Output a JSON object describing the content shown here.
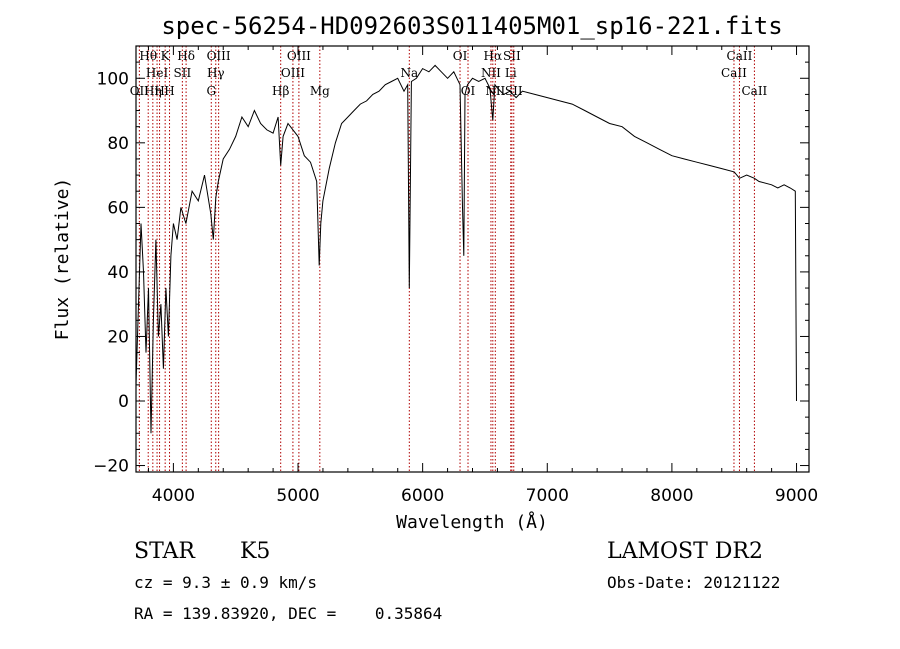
{
  "title": "spec-56254-HD092603S011405M01_sp16-221.fits",
  "chart_data": {
    "type": "line",
    "xlabel": "Wavelength (Å)",
    "ylabel": "Flux (relative)",
    "xlim": [
      3700,
      9100
    ],
    "ylim": [
      -22,
      110
    ],
    "xticks": [
      4000,
      5000,
      6000,
      7000,
      8000,
      9000
    ],
    "yticks": [
      -20,
      0,
      20,
      40,
      60,
      80,
      100
    ],
    "series": [
      {
        "x": [
          3700,
          3720,
          3740,
          3760,
          3780,
          3800,
          3820,
          3840,
          3860,
          3880,
          3900,
          3920,
          3940,
          3960,
          3980,
          4000,
          4030,
          4060,
          4100,
          4150,
          4200,
          4250,
          4300,
          4320,
          4340,
          4360,
          4400,
          4450,
          4500,
          4550,
          4600,
          4650,
          4700,
          4750,
          4800,
          4840,
          4861,
          4880,
          4920,
          4960,
          5000,
          5050,
          5100,
          5150,
          5170,
          5183,
          5200,
          5250,
          5300,
          5350,
          5400,
          5450,
          5500,
          5550,
          5600,
          5650,
          5700,
          5750,
          5800,
          5850,
          5880,
          5893,
          5910,
          5950,
          6000,
          6050,
          6100,
          6150,
          6200,
          6250,
          6300,
          6320,
          6330,
          6340,
          6360,
          6400,
          6450,
          6500,
          6540,
          6563,
          6580,
          6600,
          6650,
          6700,
          6750,
          6800,
          6900,
          7000,
          7100,
          7200,
          7300,
          7400,
          7500,
          7600,
          7700,
          7800,
          7900,
          8000,
          8100,
          8200,
          8300,
          8400,
          8500,
          8542,
          8600,
          8662,
          8700,
          8800,
          8850,
          8900,
          8950,
          8990,
          9000
        ],
        "y": [
          5,
          30,
          55,
          40,
          15,
          35,
          -10,
          25,
          50,
          20,
          30,
          10,
          35,
          20,
          45,
          55,
          50,
          60,
          55,
          65,
          62,
          70,
          58,
          50,
          63,
          68,
          75,
          78,
          82,
          88,
          85,
          90,
          86,
          84,
          83,
          88,
          73,
          82,
          86,
          84,
          82,
          76,
          74,
          68,
          42,
          55,
          62,
          72,
          80,
          86,
          88,
          90,
          92,
          93,
          95,
          96,
          98,
          99,
          100,
          96,
          98,
          35,
          99,
          100,
          103,
          102,
          104,
          102,
          100,
          102,
          98,
          60,
          45,
          95,
          98,
          100,
          99,
          100,
          97,
          87,
          98,
          97,
          95,
          96,
          94,
          96,
          95,
          94,
          93,
          92,
          90,
          88,
          86,
          85,
          82,
          80,
          78,
          76,
          75,
          74,
          73,
          72,
          71,
          69,
          70,
          69,
          68,
          67,
          66,
          67,
          66,
          65,
          0
        ]
      }
    ]
  },
  "spectral_lines": [
    {
      "wave": 3727,
      "name": "OII",
      "row": 3
    },
    {
      "wave": 3798,
      "name": "Hθ",
      "row": 1
    },
    {
      "wave": 3835,
      "name": "Hη",
      "row": 3
    },
    {
      "wave": 3869,
      "name": "HeI",
      "row": 2
    },
    {
      "wave": 3889,
      "name": "H",
      "row": 3
    },
    {
      "wave": 3934,
      "name": "K",
      "row": 1
    },
    {
      "wave": 3969,
      "name": "H",
      "row": 3
    },
    {
      "wave": 4072,
      "name": "SII",
      "row": 2
    },
    {
      "wave": 4102,
      "name": "Hδ",
      "row": 1
    },
    {
      "wave": 4304,
      "name": "G",
      "row": 3
    },
    {
      "wave": 4340,
      "name": "Hγ",
      "row": 2
    },
    {
      "wave": 4363,
      "name": "OIII",
      "row": 1
    },
    {
      "wave": 4861,
      "name": "Hβ",
      "row": 3
    },
    {
      "wave": 4959,
      "name": "OIII",
      "row": 2
    },
    {
      "wave": 5007,
      "name": "OIII",
      "row": 1
    },
    {
      "wave": 5175,
      "name": "Mg",
      "row": 3
    },
    {
      "wave": 5893,
      "name": "Na",
      "row": 2
    },
    {
      "wave": 6300,
      "name": "OI",
      "row": 1
    },
    {
      "wave": 6364,
      "name": "OI",
      "row": 3
    },
    {
      "wave": 6548,
      "name": "NII",
      "row": 2
    },
    {
      "wave": 6563,
      "name": "Hα",
      "row": 1
    },
    {
      "wave": 6583,
      "name": "NII",
      "row": 3
    },
    {
      "wave": 6707,
      "name": "Li",
      "row": 2
    },
    {
      "wave": 6716,
      "name": "SII",
      "row": 1
    },
    {
      "wave": 6731,
      "name": "SII",
      "row": 3
    },
    {
      "wave": 8498,
      "name": "CaII",
      "row": 2
    },
    {
      "wave": 8542,
      "name": "CaII",
      "row": 1
    },
    {
      "wave": 8662,
      "name": "CaII",
      "row": 3
    }
  ],
  "colors": {
    "line_marker": "#b00000",
    "spectrum": "#000000"
  },
  "info": {
    "class": "STAR",
    "subclass": "K5",
    "cz": "cz = 9.3 ± 0.9 km/s",
    "coords": "RA = 139.83920, DEC =    0.35864",
    "survey": "LAMOST DR2",
    "obsdate": "Obs-Date: 20121122"
  }
}
